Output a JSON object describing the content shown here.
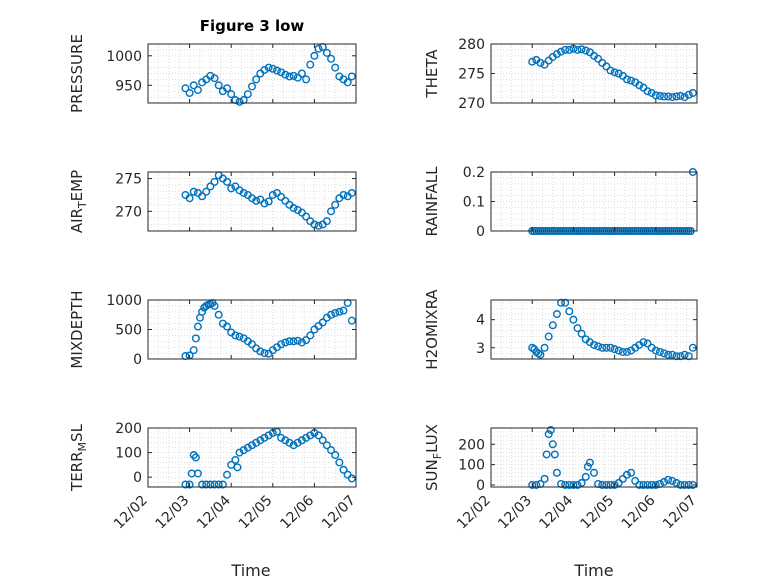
{
  "title": "Figure 3 low",
  "style": {
    "marker_color": "#0072BD",
    "axis_color": "#262626",
    "grid_color": "#d0d0d0"
  },
  "chart_data": [
    {
      "type": "scatter",
      "ylabel": "PRESSURE",
      "ylabel_sub": "",
      "ylabel_tail": "",
      "yticks": [
        950,
        1000
      ],
      "ylim": [
        920,
        1020
      ],
      "grid": true,
      "x": [
        2.9,
        3.0,
        3.1,
        3.2,
        3.3,
        3.4,
        3.5,
        3.6,
        3.7,
        3.8,
        3.9,
        4.0,
        4.1,
        4.2,
        4.3,
        4.4,
        4.5,
        4.6,
        4.7,
        4.8,
        4.9,
        5.0,
        5.1,
        5.2,
        5.3,
        5.4,
        5.5,
        5.6,
        5.7,
        5.8,
        5.9,
        6.0,
        6.1,
        6.2,
        6.3,
        6.4,
        6.5,
        6.6,
        6.7,
        6.8,
        6.9
      ],
      "y": [
        945,
        937,
        950,
        942,
        955,
        960,
        966,
        962,
        950,
        940,
        945,
        935,
        925,
        922,
        925,
        935,
        948,
        960,
        970,
        976,
        980,
        978,
        975,
        972,
        968,
        965,
        966,
        963,
        970,
        960,
        985,
        1000,
        1012,
        1015,
        1005,
        995,
        980,
        965,
        960,
        955,
        965
      ]
    },
    {
      "type": "scatter",
      "ylabel": "THETA",
      "ylabel_sub": "",
      "ylabel_tail": "",
      "yticks": [
        270,
        275,
        280
      ],
      "ylim": [
        270,
        280
      ],
      "grid": true,
      "x": [
        3.0,
        3.1,
        3.2,
        3.3,
        3.4,
        3.5,
        3.6,
        3.7,
        3.8,
        3.9,
        4.0,
        4.1,
        4.2,
        4.3,
        4.4,
        4.5,
        4.6,
        4.7,
        4.8,
        4.9,
        5.0,
        5.1,
        5.2,
        5.3,
        5.4,
        5.5,
        5.6,
        5.7,
        5.8,
        5.9,
        6.0,
        6.1,
        6.2,
        6.3,
        6.4,
        6.5,
        6.6,
        6.7,
        6.8,
        6.9
      ],
      "y": [
        277,
        277.3,
        276.8,
        276.5,
        277.2,
        277.8,
        278.3,
        278.7,
        279,
        279,
        279.2,
        279,
        279.1,
        278.9,
        278.6,
        278,
        277.5,
        276.8,
        276.2,
        275.5,
        275.2,
        275,
        274.6,
        274,
        273.8,
        273.5,
        273,
        272.6,
        272,
        271.7,
        271.3,
        271.2,
        271.1,
        271.1,
        271,
        271.1,
        271.2,
        271,
        271.4,
        271.7
      ]
    },
    {
      "type": "scatter",
      "ylabel": "AIR",
      "ylabel_sub": "T",
      "ylabel_tail": "EMP",
      "yticks": [
        270,
        275
      ],
      "ylim": [
        267,
        276
      ],
      "grid": true,
      "x": [
        2.9,
        3.0,
        3.1,
        3.2,
        3.3,
        3.4,
        3.5,
        3.6,
        3.7,
        3.8,
        3.9,
        4.0,
        4.1,
        4.2,
        4.3,
        4.4,
        4.5,
        4.6,
        4.7,
        4.8,
        4.9,
        5.0,
        5.1,
        5.2,
        5.3,
        5.4,
        5.5,
        5.6,
        5.7,
        5.8,
        5.9,
        6.0,
        6.1,
        6.2,
        6.3,
        6.4,
        6.5,
        6.6,
        6.7,
        6.8,
        6.9
      ],
      "y": [
        272.5,
        272,
        273,
        272.8,
        272.3,
        273,
        273.8,
        274.5,
        275.5,
        275,
        274.5,
        273.5,
        273.8,
        273.2,
        272.8,
        272.5,
        272,
        271.6,
        271.8,
        271.2,
        271.5,
        272.5,
        272.8,
        272.2,
        271.6,
        271,
        270.5,
        270.2,
        269.8,
        269.2,
        268.5,
        268,
        267.8,
        268,
        268.5,
        270,
        271,
        272,
        272.5,
        272.3,
        272.8
      ]
    },
    {
      "type": "scatter",
      "ylabel": "RAINFALL",
      "ylabel_sub": "",
      "ylabel_tail": "",
      "yticks": [
        0,
        0.1,
        0.2
      ],
      "ylim": [
        0,
        0.2
      ],
      "grid": true,
      "x": [
        3.0,
        3.05,
        3.1,
        3.15,
        3.2,
        3.25,
        3.3,
        3.35,
        3.4,
        3.45,
        3.5,
        3.55,
        3.6,
        3.65,
        3.7,
        3.75,
        3.8,
        3.85,
        3.9,
        3.95,
        4.0,
        4.05,
        4.1,
        4.15,
        4.2,
        4.25,
        4.3,
        4.35,
        4.4,
        4.45,
        4.5,
        4.55,
        4.6,
        4.65,
        4.7,
        4.75,
        4.8,
        4.85,
        4.9,
        4.95,
        5.0,
        5.05,
        5.1,
        5.15,
        5.2,
        5.25,
        5.3,
        5.35,
        5.4,
        5.45,
        5.5,
        5.55,
        5.6,
        5.65,
        5.7,
        5.75,
        5.8,
        5.85,
        5.9,
        5.95,
        6.0,
        6.05,
        6.1,
        6.15,
        6.2,
        6.25,
        6.3,
        6.35,
        6.4,
        6.45,
        6.5,
        6.55,
        6.6,
        6.65,
        6.7,
        6.75,
        6.8,
        6.85,
        6.9
      ],
      "y": [
        0,
        0,
        0,
        0,
        0,
        0,
        0,
        0,
        0,
        0,
        0,
        0,
        0,
        0,
        0,
        0,
        0,
        0,
        0,
        0,
        0,
        0,
        0,
        0,
        0,
        0,
        0,
        0,
        0,
        0,
        0,
        0,
        0,
        0,
        0,
        0,
        0,
        0,
        0,
        0,
        0,
        0,
        0,
        0,
        0,
        0,
        0,
        0,
        0,
        0,
        0,
        0,
        0,
        0,
        0,
        0,
        0,
        0,
        0,
        0,
        0,
        0,
        0,
        0,
        0,
        0,
        0,
        0,
        0,
        0,
        0,
        0,
        0,
        0,
        0,
        0,
        0,
        0,
        0.2
      ]
    },
    {
      "type": "scatter",
      "ylabel": "MIXDEPTH",
      "ylabel_sub": "",
      "ylabel_tail": "",
      "yticks": [
        0,
        500,
        1000
      ],
      "ylim": [
        0,
        1000
      ],
      "grid": true,
      "x": [
        2.9,
        3.0,
        3.1,
        3.15,
        3.2,
        3.25,
        3.3,
        3.35,
        3.4,
        3.45,
        3.5,
        3.55,
        3.6,
        3.7,
        3.8,
        3.9,
        4.0,
        4.1,
        4.2,
        4.3,
        4.4,
        4.5,
        4.6,
        4.7,
        4.8,
        4.9,
        5.0,
        5.1,
        5.2,
        5.3,
        5.4,
        5.5,
        5.6,
        5.7,
        5.8,
        5.9,
        6.0,
        6.1,
        6.2,
        6.3,
        6.4,
        6.5,
        6.6,
        6.7,
        6.8,
        6.9
      ],
      "y": [
        50,
        60,
        150,
        350,
        550,
        700,
        800,
        870,
        900,
        920,
        930,
        950,
        900,
        750,
        600,
        550,
        450,
        400,
        380,
        350,
        300,
        250,
        180,
        130,
        100,
        90,
        150,
        200,
        250,
        280,
        300,
        300,
        310,
        280,
        320,
        400,
        500,
        560,
        620,
        700,
        750,
        780,
        800,
        820,
        950,
        650
      ]
    },
    {
      "type": "scatter",
      "ylabel": "H2OMIXRA",
      "ylabel_sub": "",
      "ylabel_tail": "",
      "yticks": [
        3,
        4
      ],
      "ylim": [
        2.6,
        4.7
      ],
      "grid": true,
      "x": [
        3.0,
        3.05,
        3.1,
        3.15,
        3.2,
        3.3,
        3.4,
        3.5,
        3.6,
        3.7,
        3.8,
        3.9,
        4.0,
        4.1,
        4.2,
        4.3,
        4.4,
        4.5,
        4.6,
        4.7,
        4.8,
        4.9,
        5.0,
        5.1,
        5.2,
        5.3,
        5.4,
        5.5,
        5.6,
        5.7,
        5.8,
        5.9,
        6.0,
        6.1,
        6.2,
        6.3,
        6.4,
        6.5,
        6.6,
        6.7,
        6.8,
        6.9
      ],
      "y": [
        3,
        2.95,
        2.85,
        2.8,
        2.75,
        3,
        3.4,
        3.8,
        4.2,
        4.6,
        4.6,
        4.3,
        4,
        3.7,
        3.5,
        3.3,
        3.2,
        3.1,
        3.05,
        3,
        3,
        3,
        2.95,
        2.9,
        2.85,
        2.85,
        2.9,
        3,
        3.1,
        3.2,
        3.15,
        3,
        2.9,
        2.85,
        2.8,
        2.75,
        2.75,
        2.7,
        2.7,
        2.75,
        2.7,
        3
      ]
    },
    {
      "type": "scatter",
      "ylabel": "TERR",
      "ylabel_sub": "M",
      "ylabel_tail": "SL",
      "yticks": [
        0,
        100,
        200
      ],
      "ylim": [
        -40,
        200
      ],
      "grid": true,
      "x": [
        2.9,
        3.0,
        3.05,
        3.1,
        3.15,
        3.2,
        3.3,
        3.4,
        3.5,
        3.6,
        3.7,
        3.8,
        3.9,
        4.0,
        4.1,
        4.15,
        4.2,
        4.3,
        4.4,
        4.5,
        4.6,
        4.7,
        4.8,
        4.9,
        5.0,
        5.1,
        5.2,
        5.3,
        5.4,
        5.5,
        5.6,
        5.7,
        5.8,
        5.9,
        6.0,
        6.1,
        6.2,
        6.3,
        6.4,
        6.5,
        6.6,
        6.7,
        6.8,
        6.9
      ],
      "y": [
        -30,
        -30,
        15,
        90,
        80,
        15,
        -30,
        -30,
        -30,
        -30,
        -30,
        -30,
        10,
        50,
        70,
        40,
        100,
        110,
        120,
        130,
        140,
        150,
        160,
        170,
        180,
        185,
        160,
        150,
        140,
        130,
        140,
        150,
        160,
        170,
        180,
        170,
        150,
        130,
        110,
        90,
        60,
        30,
        10,
        -5
      ]
    },
    {
      "type": "scatter",
      "ylabel": "SUN",
      "ylabel_sub": "F",
      "ylabel_tail": "LUX",
      "yticks": [
        0,
        100,
        200
      ],
      "ylim": [
        -10,
        280
      ],
      "grid": true,
      "x": [
        3.0,
        3.1,
        3.2,
        3.3,
        3.35,
        3.4,
        3.45,
        3.5,
        3.55,
        3.6,
        3.7,
        3.8,
        3.9,
        4.0,
        4.1,
        4.2,
        4.3,
        4.35,
        4.4,
        4.5,
        4.6,
        4.7,
        4.8,
        4.9,
        5.0,
        5.1,
        5.2,
        5.3,
        5.4,
        5.5,
        5.6,
        5.7,
        5.8,
        5.9,
        6.0,
        6.1,
        6.2,
        6.3,
        6.4,
        6.5,
        6.6,
        6.7,
        6.8,
        6.9
      ],
      "y": [
        0,
        0,
        5,
        30,
        150,
        250,
        270,
        200,
        150,
        60,
        5,
        0,
        0,
        0,
        0,
        10,
        40,
        90,
        110,
        60,
        5,
        0,
        0,
        0,
        0,
        10,
        30,
        50,
        60,
        20,
        0,
        0,
        0,
        0,
        0,
        5,
        15,
        25,
        20,
        10,
        0,
        0,
        0,
        0
      ]
    }
  ],
  "xaxis": {
    "ticks": [
      "12/02",
      "12/03",
      "12/04",
      "12/05",
      "12/06",
      "12/07"
    ],
    "xlabel": "Time"
  }
}
